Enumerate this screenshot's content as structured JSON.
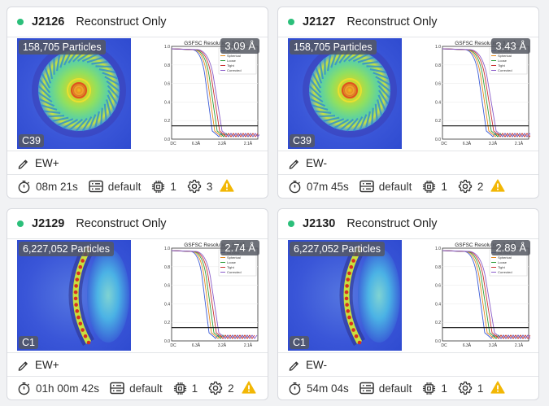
{
  "cards": [
    {
      "job_id": "J2126",
      "job_type": "Reconstruct Only",
      "particles": "158,705 Particles",
      "symmetry": "C39",
      "resolution": "3.09 Å",
      "fsc_title": "GSFSC Resolution: 3.09Å",
      "title": "EW+",
      "runtime": "08m 21s",
      "lane": "default",
      "gpus": "1",
      "params": "3",
      "map_style": "top-view"
    },
    {
      "job_id": "J2127",
      "job_type": "Reconstruct Only",
      "particles": "158,705 Particles",
      "symmetry": "C39",
      "resolution": "3.43 Å",
      "fsc_title": "GSFSC Resolution: 3.43Å",
      "title": "EW-",
      "runtime": "07m 45s",
      "lane": "default",
      "gpus": "1",
      "params": "2",
      "map_style": "top-view"
    },
    {
      "job_id": "J2129",
      "job_type": "Reconstruct Only",
      "particles": "6,227,052 Particles",
      "symmetry": "C1",
      "resolution": "2.74 Å",
      "fsc_title": "GSFSC Resolution: 2.74Å",
      "title": "EW+",
      "runtime": "01h 00m 42s",
      "lane": "default",
      "gpus": "1",
      "params": "2",
      "map_style": "side-view"
    },
    {
      "job_id": "J2130",
      "job_type": "Reconstruct Only",
      "particles": "6,227,052 Particles",
      "symmetry": "C1",
      "resolution": "2.89 Å",
      "fsc_title": "GSFSC Resolution: 2.89Å",
      "title": "EW-",
      "runtime": "54m 04s",
      "lane": "default",
      "gpus": "1",
      "params": "1",
      "map_style": "side-view"
    }
  ],
  "fsc_legend": [
    "No Mask",
    "Spherical",
    "Loose",
    "Tight",
    "Corrected"
  ],
  "fsc_xticks": [
    "DC",
    "6.3Å",
    "3.2Å",
    "2.1Å"
  ],
  "fsc_yticks": [
    "1.0",
    "0.8",
    "0.6",
    "0.4",
    "0.2",
    "0.0"
  ],
  "colors": {
    "status": "#2bbf7a",
    "warning": "#f2b705",
    "fsc_lines": [
      "#3b5bd6",
      "#e58a1f",
      "#2e9e3a",
      "#c93434",
      "#8a5cc9"
    ]
  },
  "icons": {
    "edit": "pencil-icon",
    "runtime": "stopwatch-icon",
    "lane": "server-icon",
    "gpu": "chip-icon",
    "params": "gear-icon",
    "warning": "warning-icon"
  }
}
